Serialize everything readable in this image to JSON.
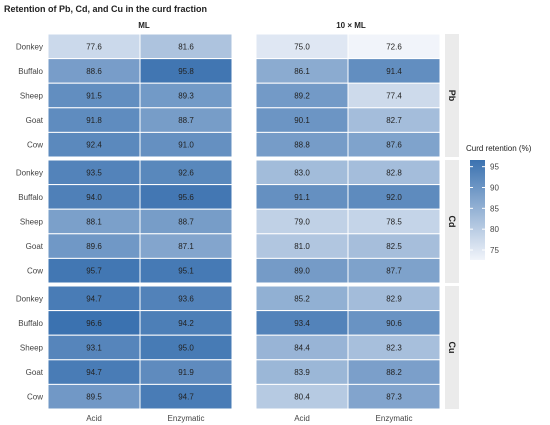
{
  "chart_data": {
    "type": "heatmap",
    "title": "Retention of Pb, Cd, and Cu in the curd fraction",
    "columns_facets": [
      "ML",
      "10 × ML"
    ],
    "rows_facets": [
      "Pb",
      "Cd",
      "Cu"
    ],
    "x_categories": [
      "Acid",
      "Enzymatic"
    ],
    "y_categories": [
      "Donkey",
      "Buffalo",
      "Sheep",
      "Goat",
      "Cow"
    ],
    "legend": {
      "title": "Curd retention (%)",
      "ticks": [
        75,
        80,
        85,
        90,
        95
      ],
      "range": [
        72.6,
        96.6
      ],
      "color_low": "#f1f4fa",
      "color_high": "#3b72b0",
      "placement": "right"
    },
    "values": {
      "Pb": {
        "ML": {
          "Acid": [
            77.6,
            88.6,
            91.5,
            91.8,
            92.4
          ],
          "Enzymatic": [
            81.6,
            95.8,
            89.3,
            88.7,
            91.0
          ]
        },
        "10 × ML": {
          "Acid": [
            75.0,
            86.1,
            89.2,
            90.1,
            88.8
          ],
          "Enzymatic": [
            72.6,
            91.4,
            77.4,
            82.7,
            87.6
          ]
        }
      },
      "Cd": {
        "ML": {
          "Acid": [
            93.5,
            94.0,
            88.1,
            89.6,
            95.7
          ],
          "Enzymatic": [
            92.6,
            95.6,
            88.7,
            87.1,
            95.1
          ]
        },
        "10 × ML": {
          "Acid": [
            83.0,
            91.1,
            79.0,
            81.0,
            89.0
          ],
          "Enzymatic": [
            82.8,
            92.0,
            78.5,
            82.5,
            87.7
          ]
        }
      },
      "Cu": {
        "ML": {
          "Acid": [
            94.7,
            96.6,
            93.1,
            94.7,
            89.5
          ],
          "Enzymatic": [
            93.6,
            94.2,
            95.0,
            91.9,
            94.7
          ]
        },
        "10 × ML": {
          "Acid": [
            85.2,
            93.4,
            84.4,
            83.9,
            80.4
          ],
          "Enzymatic": [
            82.9,
            90.6,
            82.3,
            88.2,
            87.3
          ]
        }
      }
    }
  }
}
